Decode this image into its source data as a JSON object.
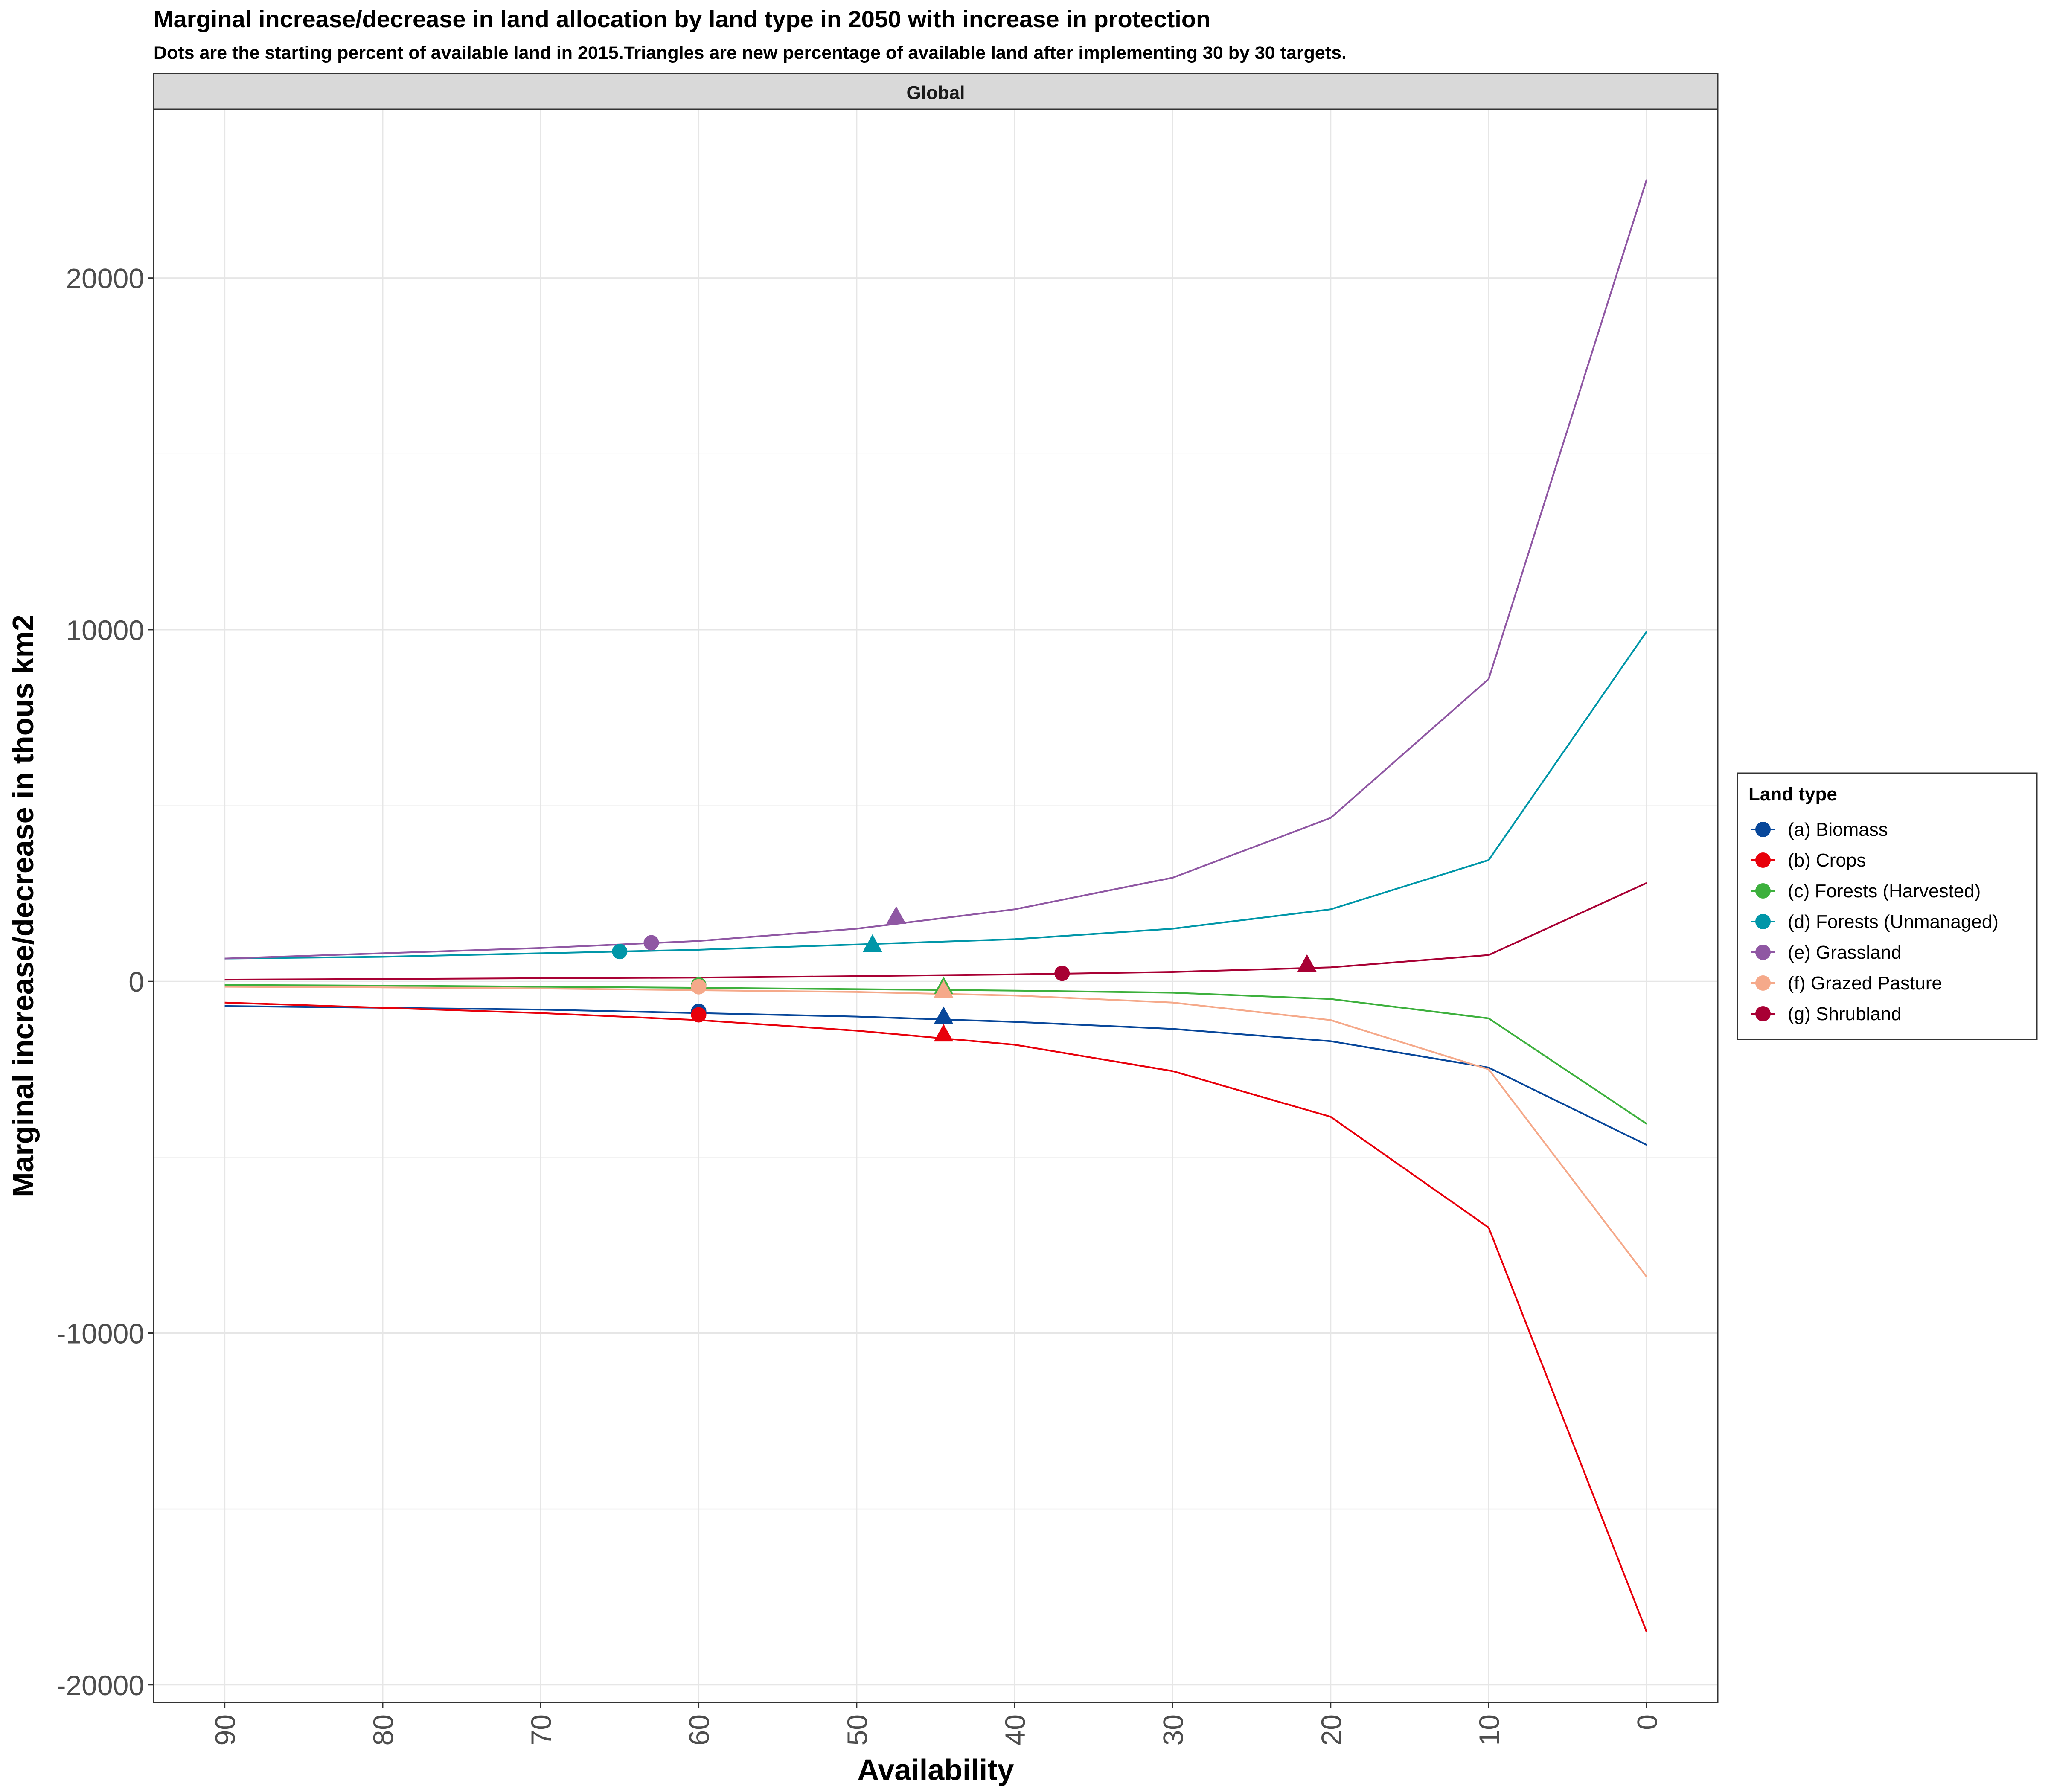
{
  "chart_data": {
    "type": "line",
    "title": "Marginal increase/decrease in land allocation by land type in 2050 with increase in protection",
    "subtitle": "Dots are the starting percent of available land in 2015.Triangles are new percentage of available land after implementing 30 by 30 targets.",
    "facet": "Global",
    "xlabel": "Availability",
    "ylabel": "Marginal increase/decrease in thous km2",
    "x_reversed": true,
    "xlim": [
      94.5,
      -4.5
    ],
    "ylim": [
      -20500,
      24800
    ],
    "x_ticks": [
      "90",
      "80",
      "70",
      "60",
      "50",
      "40",
      "30",
      "20",
      "10",
      "0"
    ],
    "y_ticks": [
      "20000",
      "10000",
      "0",
      "-10000",
      "-20000"
    ],
    "grid": true,
    "legend_title": "Land type",
    "legend_position": "right",
    "x": [
      90,
      80,
      70,
      60,
      50,
      40,
      30,
      20,
      10,
      0
    ],
    "series": [
      {
        "name": "(a) Biomass",
        "color": "#08479a",
        "values": [
          -700,
          -750,
          -800,
          -900,
          -1000,
          -1150,
          -1350,
          -1700,
          -2450,
          -4650
        ],
        "dot": {
          "x": 60,
          "y": -850
        },
        "triangle": {
          "x": 44.5,
          "y": -1000
        }
      },
      {
        "name": "(b) Crops",
        "color": "#e8000b",
        "values": [
          -600,
          -750,
          -900,
          -1100,
          -1400,
          -1800,
          -2550,
          -3850,
          -7000,
          -18500
        ],
        "dot": {
          "x": 60,
          "y": -950
        },
        "triangle": {
          "x": 44.5,
          "y": -1500
        }
      },
      {
        "name": "(c) Forests (Harvested)",
        "color": "#3db03d",
        "values": [
          -100,
          -120,
          -150,
          -180,
          -220,
          -260,
          -320,
          -500,
          -1050,
          -4050
        ],
        "dot": {
          "x": 60,
          "y": -100
        },
        "triangle": {
          "x": 44.5,
          "y": -150
        }
      },
      {
        "name": "(d) Forests (Unmanaged)",
        "color": "#0096a8",
        "values": [
          650,
          700,
          800,
          900,
          1050,
          1200,
          1500,
          2050,
          3450,
          9950
        ],
        "dot": {
          "x": 65,
          "y": 850
        },
        "triangle": {
          "x": 49,
          "y": 1050
        }
      },
      {
        "name": "(e) Grassland",
        "color": "#8f57a3",
        "values": [
          650,
          800,
          950,
          1150,
          1500,
          2050,
          2950,
          4650,
          8600,
          22800
        ],
        "dot": {
          "x": 63,
          "y": 1100
        },
        "triangle": {
          "x": 47.5,
          "y": 1850
        }
      },
      {
        "name": "(f) Grazed Pasture",
        "color": "#f5a98a",
        "values": [
          -150,
          -170,
          -200,
          -250,
          -300,
          -400,
          -600,
          -1100,
          -2500,
          -8400
        ],
        "dot": {
          "x": 60,
          "y": -150
        },
        "triangle": {
          "x": 44.5,
          "y": -250
        }
      },
      {
        "name": "(g) Shrubland",
        "color": "#a80034",
        "values": [
          50,
          70,
          90,
          110,
          150,
          200,
          270,
          400,
          750,
          2800
        ],
        "dot": {
          "x": 37,
          "y": 230
        },
        "triangle": {
          "x": 21.5,
          "y": 480
        }
      }
    ]
  }
}
